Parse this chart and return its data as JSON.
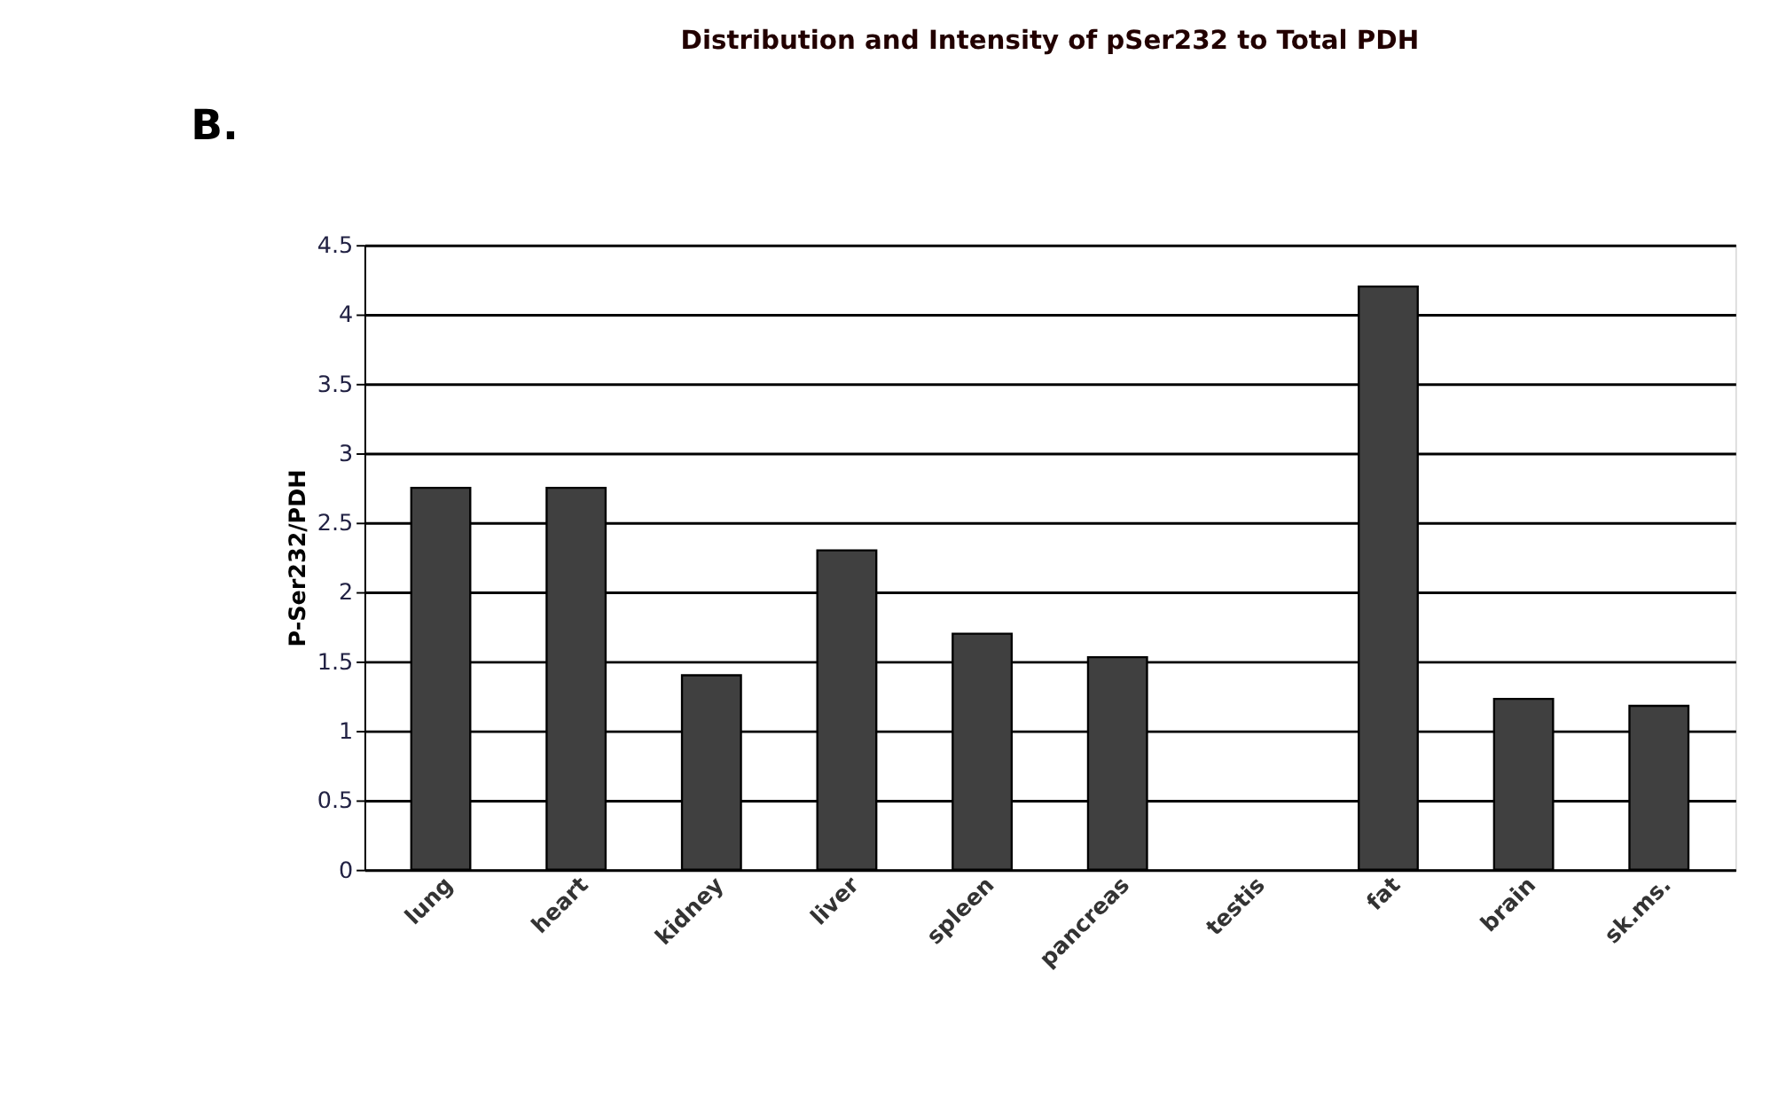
{
  "chart_data": {
    "type": "bar",
    "title": "Distribution and Intensity of pSer232 to Total PDH",
    "ylabel": "P-Ser232/PDH",
    "annotations": [
      "B."
    ],
    "categories": [
      "lung",
      "heart",
      "kidney",
      "liver",
      "spleen",
      "pancreas",
      "testis",
      "fat",
      "brain",
      "sk.ms."
    ],
    "values": [
      2.75,
      2.75,
      1.4,
      2.3,
      1.7,
      1.53,
      0,
      4.2,
      1.23,
      1.18
    ],
    "color": "#404040",
    "ylim": [
      0,
      4.5
    ],
    "yticks": [
      0,
      0.5,
      1,
      1.5,
      2,
      2.5,
      3,
      3.5,
      4,
      4.5
    ],
    "grid": "y"
  }
}
